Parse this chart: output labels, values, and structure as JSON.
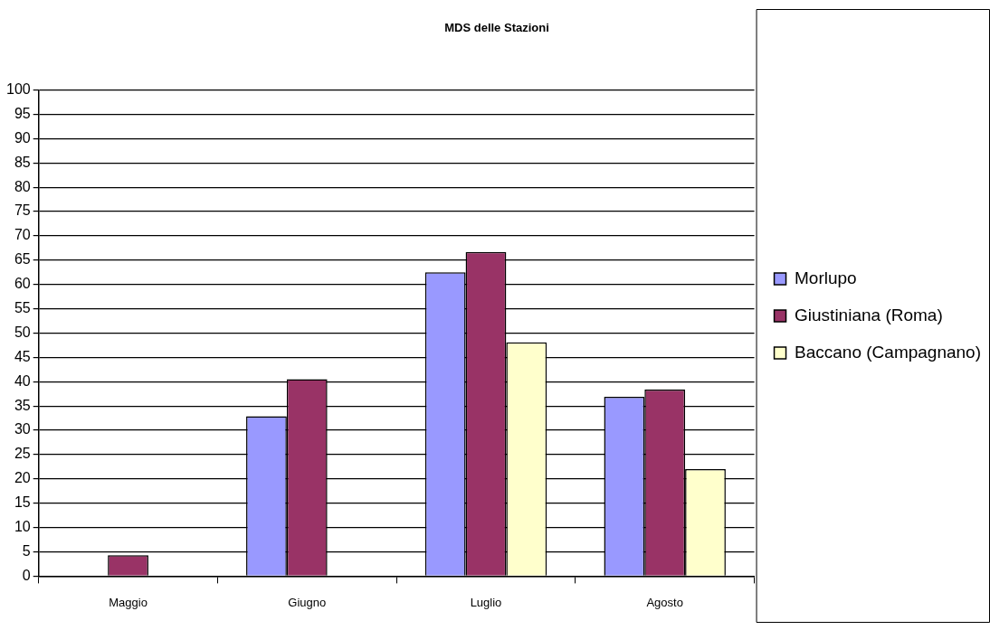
{
  "chart_data": {
    "type": "bar",
    "title": "MDS delle Stazioni",
    "categories": [
      "Maggio",
      "Giugno",
      "Luglio",
      "Agosto"
    ],
    "series": [
      {
        "name": "Morlupo",
        "color": "#9999ff",
        "values": [
          null,
          32.9,
          62.5,
          36.9
        ]
      },
      {
        "name": "Giustiniana (Roma)",
        "color": "#993366",
        "values": [
          4.3,
          40.5,
          66.7,
          38.4
        ]
      },
      {
        "name": "Baccano (Campagnano)",
        "color": "#ffffcc",
        "values": [
          null,
          null,
          48.1,
          22.0
        ]
      }
    ],
    "ylim": [
      0,
      100
    ],
    "yticks": [
      0,
      5,
      10,
      15,
      20,
      25,
      30,
      35,
      40,
      45,
      50,
      55,
      60,
      65,
      70,
      75,
      80,
      85,
      90,
      95,
      100
    ],
    "grid": "y",
    "legend": "right"
  }
}
